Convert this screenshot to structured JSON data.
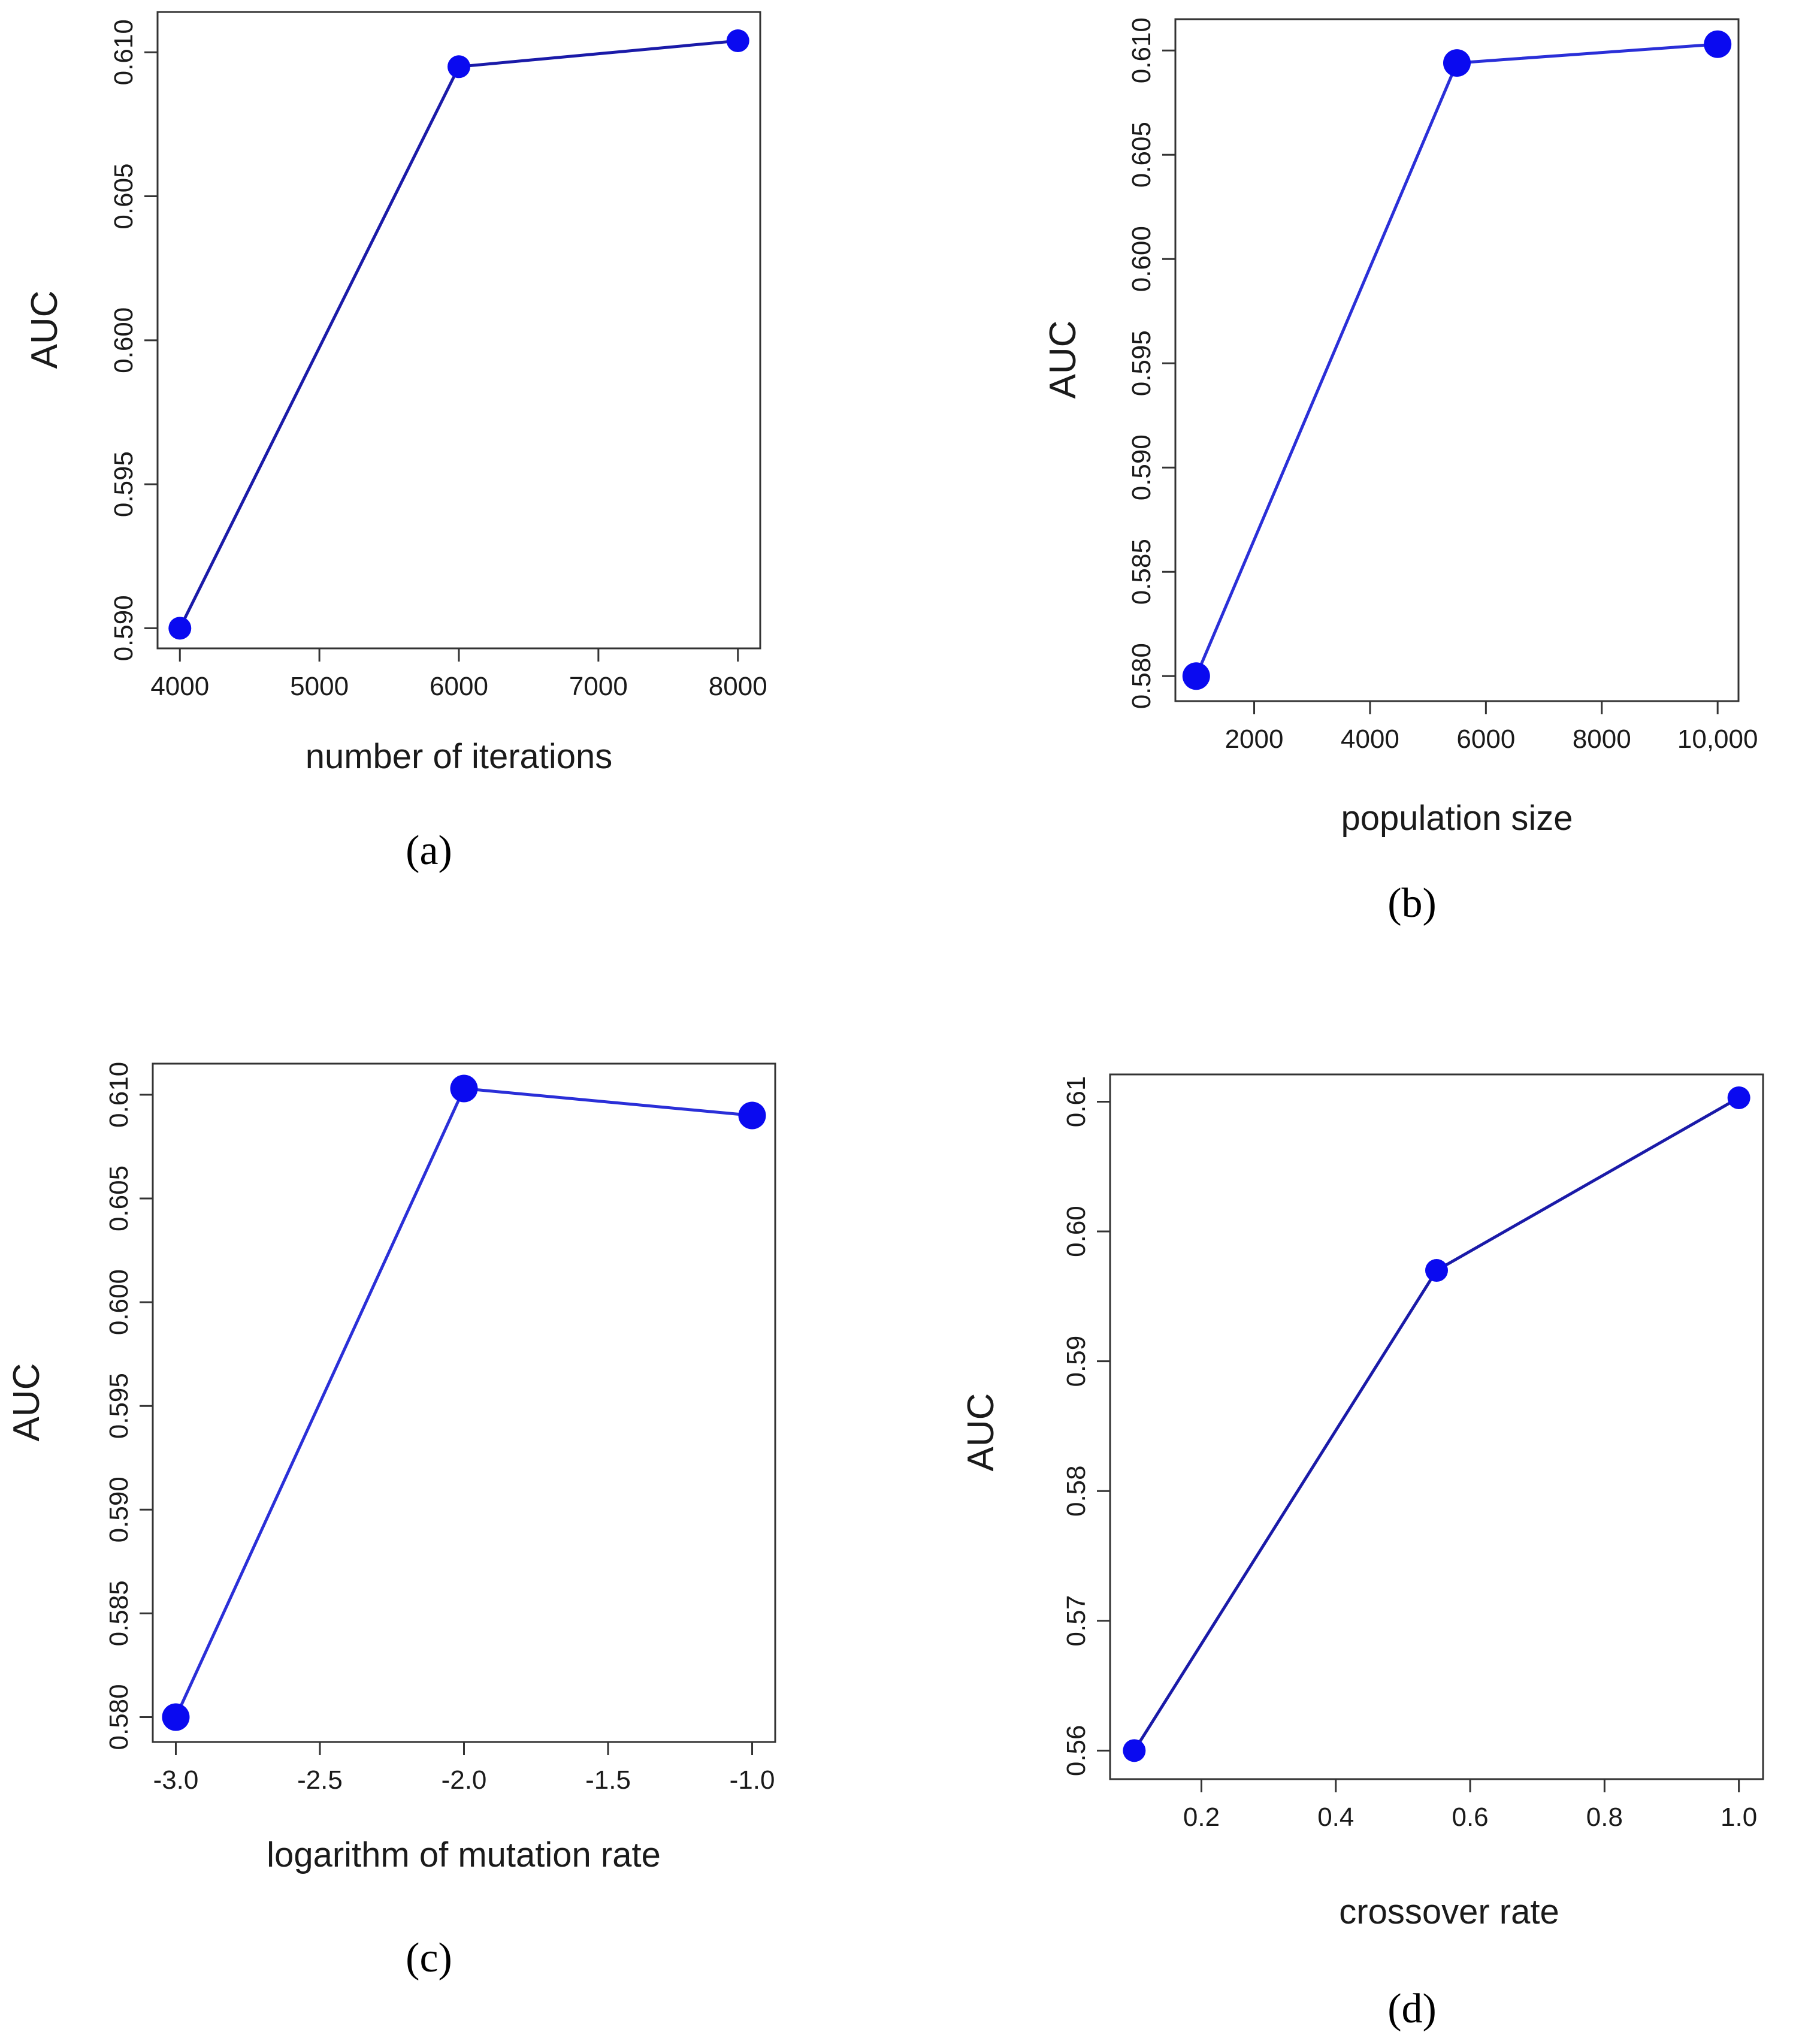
{
  "figure": {
    "panels": [
      "(a)",
      "(b)",
      "(c)",
      "(d)"
    ]
  },
  "colors": {
    "line": "#2a2fd8",
    "line_dark": "#1a1aa8",
    "marker": "#0a0af0",
    "axis": "#333333",
    "text": "#1a1a1a"
  },
  "chart_data": [
    {
      "panel": "(a)",
      "type": "line",
      "title": "",
      "xlabel": "number of iterations",
      "ylabel": "AUC",
      "x": [
        4000,
        6000,
        8000
      ],
      "y": [
        0.59,
        0.6095,
        0.6104
      ],
      "xticks": [
        4000,
        5000,
        6000,
        7000,
        8000
      ],
      "xtick_labels": [
        "4000",
        "5000",
        "6000",
        "7000",
        "8000"
      ],
      "yticks": [
        0.59,
        0.595,
        0.6,
        0.605,
        0.61
      ],
      "ytick_labels": [
        "0.590",
        "0.595",
        "0.600",
        "0.605",
        "0.610"
      ],
      "xlim": [
        3840,
        8160
      ],
      "ylim": [
        0.5893,
        0.6114
      ]
    },
    {
      "panel": "(b)",
      "type": "line",
      "title": "",
      "xlabel": "population size",
      "ylabel": "AUC",
      "x": [
        1000,
        5500,
        10000
      ],
      "y": [
        0.58,
        0.6094,
        0.6103
      ],
      "xticks": [
        2000,
        4000,
        6000,
        8000,
        10000
      ],
      "xtick_labels": [
        "2000",
        "4000",
        "6000",
        "8000",
        "10,000"
      ],
      "yticks": [
        0.58,
        0.585,
        0.59,
        0.595,
        0.6,
        0.605,
        0.61
      ],
      "ytick_labels": [
        "0.580",
        "0.585",
        "0.590",
        "0.595",
        "0.600",
        "0.605",
        "0.610"
      ],
      "xlim": [
        640,
        10360
      ],
      "ylim": [
        0.5788,
        0.6115
      ]
    },
    {
      "panel": "(c)",
      "type": "line",
      "title": "",
      "xlabel": "logarithm of mutation rate",
      "ylabel": "AUC",
      "x": [
        -3.0,
        -2.0,
        -1.0
      ],
      "y": [
        0.58,
        0.6103,
        0.609
      ],
      "xticks": [
        -3.0,
        -2.5,
        -2.0,
        -1.5,
        -1.0
      ],
      "xtick_labels": [
        "-3.0",
        "-2.5",
        "-2.0",
        "-1.5",
        "-1.0"
      ],
      "yticks": [
        0.58,
        0.585,
        0.59,
        0.595,
        0.6,
        0.605,
        0.61
      ],
      "ytick_labels": [
        "0.580",
        "0.585",
        "0.590",
        "0.595",
        "0.600",
        "0.605",
        "0.610"
      ],
      "xlim": [
        -3.08,
        -0.92
      ],
      "ylim": [
        0.5788,
        0.6115
      ]
    },
    {
      "panel": "(d)",
      "type": "line",
      "title": "",
      "xlabel": "crossover rate",
      "ylabel": "AUC",
      "x": [
        0.1,
        0.55,
        1.0
      ],
      "y": [
        0.56,
        0.597,
        0.6103
      ],
      "xticks": [
        0.2,
        0.4,
        0.6,
        0.8,
        1.0
      ],
      "xtick_labels": [
        "0.2",
        "0.4",
        "0.6",
        "0.8",
        "1.0"
      ],
      "yticks": [
        0.56,
        0.57,
        0.58,
        0.59,
        0.6,
        0.61
      ],
      "ytick_labels": [
        "0.56",
        "0.57",
        "0.58",
        "0.59",
        "0.60",
        "0.61"
      ],
      "xlim": [
        0.064,
        1.036
      ],
      "ylim": [
        0.5578,
        0.6121
      ]
    }
  ]
}
